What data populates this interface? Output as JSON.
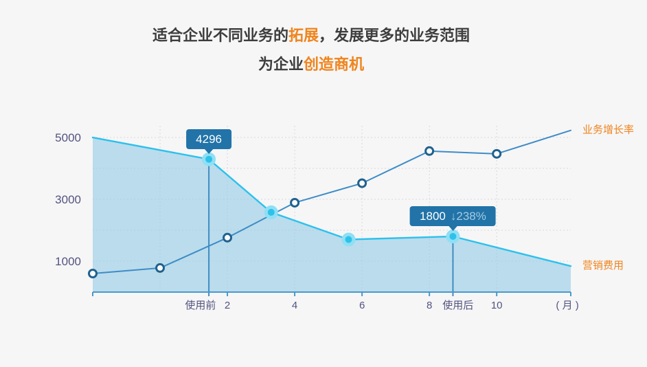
{
  "title": {
    "l1a": "适合企业不同业务的",
    "l1b": "拓展",
    "l1c": "，发展更多的业务范围",
    "l2a": "为企业",
    "l2b": "创造商机"
  },
  "colors": {
    "background": "#f6f6f7",
    "accent_orange": "#f0841c",
    "title_text": "#3d3d3d",
    "tooltip_bg": "#2173a8",
    "axis_blue": "#4a98c9",
    "axis_label": "#53537f",
    "gridline": "#d8d8de"
  },
  "chart_data": {
    "type": "line",
    "title": "",
    "xlabel": "( 月 )",
    "ylabel": "",
    "xlim": [
      -2,
      12.2
    ],
    "ylim": [
      0,
      5378
    ],
    "grid": true,
    "y_ticks": [
      1000,
      3000,
      5000
    ],
    "y_gridlines": [
      1000,
      2000,
      3000,
      4000,
      5000
    ],
    "x_gridlines": [
      0,
      2,
      4,
      6,
      8,
      10
    ],
    "x_axis_ticks": [
      -2,
      2,
      4,
      6,
      8,
      10,
      12.2
    ],
    "x_tick_labels": [
      {
        "x": 1.2,
        "text": "使用前"
      },
      {
        "x": 2,
        "text": "2"
      },
      {
        "x": 4,
        "text": "4"
      },
      {
        "x": 6,
        "text": "6"
      },
      {
        "x": 8,
        "text": "8"
      },
      {
        "x": 8.85,
        "text": "使用后"
      },
      {
        "x": 10,
        "text": "10"
      },
      {
        "x": 12.1,
        "text": "( 月 )"
      }
    ],
    "series": [
      {
        "name": "营销费用",
        "slug": "cost",
        "color": "#2cc1ec",
        "line_width": 2.4,
        "area_fill": "#95cbe5",
        "area_opacity": 0.6,
        "points": [
          [
            -2,
            5000
          ],
          [
            1.45,
            4296
          ],
          [
            3.3,
            2580
          ],
          [
            5.6,
            1700
          ],
          [
            8.7,
            1800
          ],
          [
            12.2,
            840
          ]
        ],
        "marker_indices": [
          1,
          2,
          3,
          4
        ],
        "dropline_indices": [
          1,
          4
        ]
      },
      {
        "name": "业务增长率",
        "slug": "growth",
        "color": "#3e8cc7",
        "line_width": 2,
        "points": [
          [
            -2,
            600
          ],
          [
            0,
            780
          ],
          [
            2,
            1760
          ],
          [
            4,
            2890
          ],
          [
            6,
            3520
          ],
          [
            8,
            4560
          ],
          [
            10,
            4470
          ],
          [
            12.2,
            5230
          ]
        ],
        "marker_indices": [
          0,
          1,
          2,
          3,
          4,
          5,
          6
        ]
      }
    ],
    "annotations": [
      {
        "series": 0,
        "point": 1,
        "value": "4296"
      },
      {
        "series": 0,
        "point": 4,
        "value": "1800",
        "delta_arrow": "↓",
        "delta": "238%"
      }
    ],
    "legend_position": "right-edge-labels"
  }
}
